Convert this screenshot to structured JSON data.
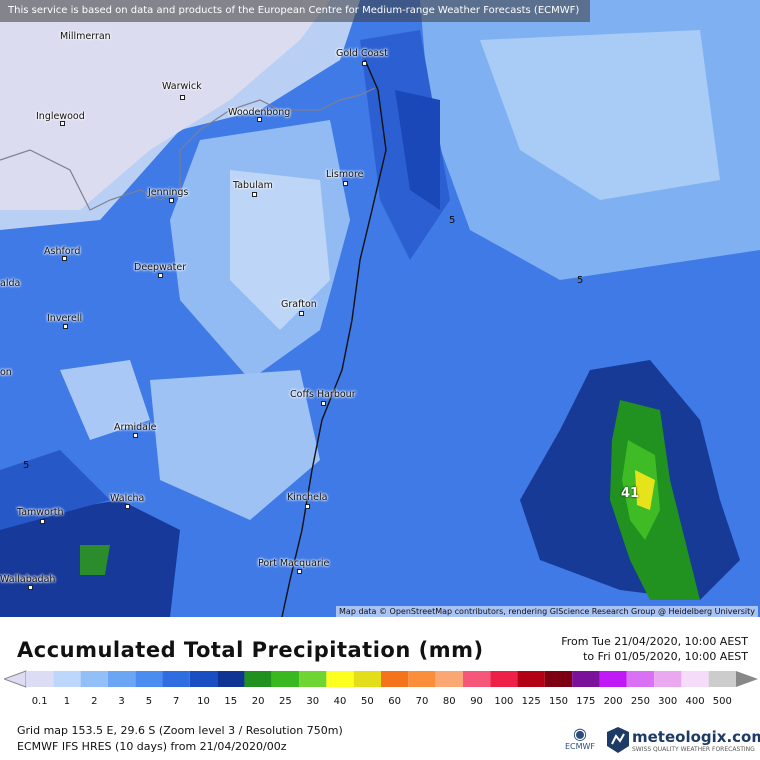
{
  "banner": "This service is based on data and products of the European Centre for Medium-range Weather Forecasts (ECMWF)",
  "places": [
    {
      "name": "Millmerran"
    },
    {
      "name": "Gold Coast"
    },
    {
      "name": "Warwick"
    },
    {
      "name": "Inglewood"
    },
    {
      "name": "Woodenbong"
    },
    {
      "name": "Lismore"
    },
    {
      "name": "Tabulam"
    },
    {
      "name": "Jennings"
    },
    {
      "name": "Ashford"
    },
    {
      "name": "alda"
    },
    {
      "name": "Deepwater"
    },
    {
      "name": "Grafton"
    },
    {
      "name": "Inverell"
    },
    {
      "name": "on"
    },
    {
      "name": "Coffs Harbour"
    },
    {
      "name": "Armidale"
    },
    {
      "name": "Walcha"
    },
    {
      "name": "Kinchela"
    },
    {
      "name": "Tamworth"
    },
    {
      "name": "Port Macquarie"
    },
    {
      "name": "Wallabadah"
    }
  ],
  "contour_labels": [
    "5",
    "5",
    "5"
  ],
  "peak_label": "41",
  "attribution": "Map data © OpenStreetMap contributors, rendering GIScience Research Group @ Heidelberg University",
  "legend": {
    "title": "Accumulated Total Precipitation (mm)",
    "range_from": "From Tue 21/04/2020, 10:00 AEST",
    "range_to": "to Fri 01/05/2020, 10:00 AEST",
    "ticks": [
      "0.1",
      "1",
      "2",
      "3",
      "5",
      "7",
      "10",
      "15",
      "20",
      "25",
      "30",
      "40",
      "50",
      "60",
      "70",
      "80",
      "90",
      "100",
      "125",
      "150",
      "175",
      "200",
      "250",
      "300",
      "400",
      "500"
    ],
    "colors": [
      "#dcdcf5",
      "#bcd7fb",
      "#93bff8",
      "#6ba6f5",
      "#4a8cf0",
      "#2f6ee0",
      "#1a4fc4",
      "#0f3494",
      "#20901e",
      "#39b91f",
      "#6fd533",
      "#fdff1f",
      "#e4dd1a",
      "#f5741b",
      "#fb8e3a",
      "#fba774",
      "#f7567b",
      "#ef2047",
      "#b40015",
      "#7d0012",
      "#7b109b",
      "#c119f5",
      "#da70f3",
      "#eaa8f1",
      "#f5dcf8",
      "#cccccc"
    ]
  },
  "footer": {
    "line1": "Grid map 153.5 E, 29.6 S (Zoom level 3 / Resolution 750m)",
    "line2": "ECMWF IFS HRES (10 days) from 21/04/2020/00z"
  },
  "logos": {
    "ecmwf": "ECMWF",
    "meteologix": "meteologix.com",
    "tagline": "SWISS QUALITY WEATHER FORECASTING"
  }
}
